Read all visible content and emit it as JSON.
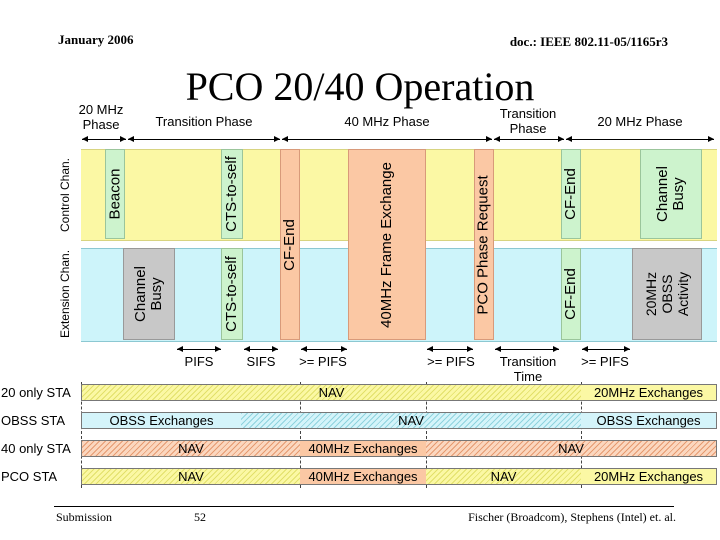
{
  "header": {
    "date": "January 2006",
    "doc": "doc.: IEEE 802.11-05/1165r3"
  },
  "title": "PCO 20/40 Operation",
  "phases": [
    "20 MHz\nPhase",
    "Transition Phase",
    "40 MHz Phase",
    "Transition\nPhase",
    "20 MHz Phase"
  ],
  "channels": {
    "control": "Control Chan.",
    "extension": "Extension Chan."
  },
  "frames": {
    "beacon": "Beacon",
    "cts_self_ctrl": "CTS-to-self",
    "cf_end_mid": "CF-End",
    "frame_exchange_40": "40MHz Frame Exchange",
    "pco_phase_request": "PCO Phase Request",
    "cf_end_ctrl": "CF-End",
    "channel_busy_ctrl": "Channel\nBusy",
    "channel_busy_ext": "Channel\nBusy",
    "cts_self_ext": "CTS-to-self",
    "cf_end_ext": "CF-End",
    "obss_activity": "20MHz\nOBSS\nActivity"
  },
  "intervals": [
    "PIFS",
    "SIFS",
    ">= PIFS",
    ">= PIFS",
    "Transition\nTime",
    ">= PIFS"
  ],
  "stations": [
    {
      "name": "20 only STA",
      "segments": [
        "NAV",
        "20MHz Exchanges"
      ]
    },
    {
      "name": "OBSS STA",
      "segments": [
        "OBSS Exchanges",
        "NAV",
        "OBSS Exchanges"
      ]
    },
    {
      "name": "40 only STA",
      "segments": [
        "NAV",
        "40MHz Exchanges",
        "NAV"
      ]
    },
    {
      "name": "PCO STA",
      "segments": [
        "NAV",
        "40MHz Exchanges",
        "NAV",
        "20MHz Exchanges"
      ]
    }
  ],
  "footer": {
    "left": "Submission",
    "page": "52",
    "right": "Fischer (Broadcom), Stephens (Intel) et. al."
  },
  "colors": {
    "control_band": "#fbf8a4",
    "extension_band": "#cdf4fa",
    "frame_green": "#cdf3cd",
    "frame_orange": "#fbc8a4",
    "frame_grey": "#c8c8c8"
  }
}
